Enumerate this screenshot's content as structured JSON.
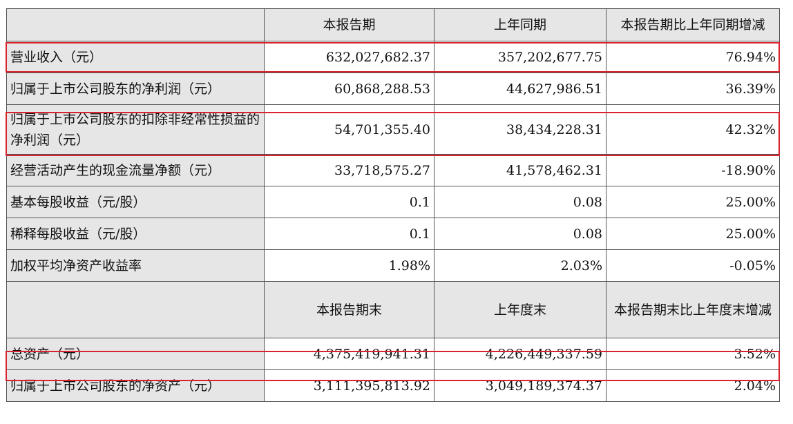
{
  "header1": [
    "本报告期",
    "上年同期",
    "本报告期比上年同期增减"
  ],
  "rows1": [
    {
      "label": "营业收入（元）",
      "current": "632,027,682.37",
      "prior": "357,202,677.75",
      "change": "76.94%"
    },
    {
      "label": "归属于上市公司股东的净利润（元）",
      "current": "60,868,288.53",
      "prior": "44,627,986.51",
      "change": "36.39%"
    },
    {
      "label": "归属于上市公司股东的扣除非经常性损益的净利润（元）",
      "current": "54,701,355.40",
      "prior": "38,434,228.31",
      "change": "42.32%"
    },
    {
      "label": "经营活动产生的现金流量净额（元）",
      "current": "33,718,575.27",
      "prior": "41,578,462.31",
      "change": "-18.90%"
    },
    {
      "label": "基本每股收益（元/股）",
      "current": "0.1",
      "prior": "0.08",
      "change": "25.00%"
    },
    {
      "label": "稀释每股收益（元/股）",
      "current": "0.1",
      "prior": "0.08",
      "change": "25.00%"
    },
    {
      "label": "加权平均净资产收益率",
      "current": "1.98%",
      "prior": "2.03%",
      "change": "-0.05%"
    }
  ],
  "header2": [
    "本报告期末",
    "上年度末",
    "本报告期末比上年度末增减"
  ],
  "rows2": [
    {
      "label": "总资产（元）",
      "current": "4,375,419,941.31",
      "prior": "4,226,449,337.59",
      "change": "3.52%"
    },
    {
      "label": "归属于上市公司股东的净资产（元）",
      "current": "3,111,395,813.92",
      "prior": "3,049,189,374.37",
      "change": "2.04%"
    }
  ],
  "highlight_color": "#d9232e"
}
